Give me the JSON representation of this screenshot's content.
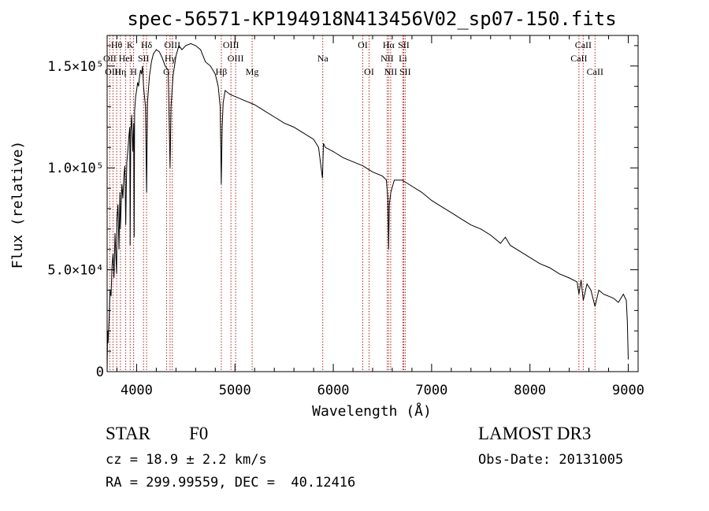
{
  "chart_data": {
    "type": "line",
    "title": "spec-56571-KP194918N413456V02_sp07-150.fits",
    "xlabel": "Wavelength (Å)",
    "ylabel": "Flux (relative)",
    "xlim": [
      3700,
      9100
    ],
    "ylim": [
      0,
      165000
    ],
    "x_ticks": [
      {
        "value": 4000,
        "label": "4000"
      },
      {
        "value": 5000,
        "label": "5000"
      },
      {
        "value": 6000,
        "label": "6000"
      },
      {
        "value": 7000,
        "label": "7000"
      },
      {
        "value": 8000,
        "label": "8000"
      },
      {
        "value": 9000,
        "label": "9000"
      }
    ],
    "y_ticks": [
      {
        "value": 0,
        "label": "0"
      },
      {
        "value": 50000,
        "label": "5.0×10⁴"
      },
      {
        "value": 100000,
        "label": "1.0×10⁵"
      },
      {
        "value": 150000,
        "label": "1.5×10⁵"
      }
    ],
    "series": [
      {
        "name": "flux",
        "x": [
          3700,
          3705,
          3710,
          3720,
          3730,
          3740,
          3750,
          3760,
          3770,
          3780,
          3790,
          3797,
          3800,
          3810,
          3820,
          3830,
          3835,
          3840,
          3850,
          3860,
          3870,
          3880,
          3889,
          3895,
          3900,
          3910,
          3920,
          3930,
          3934,
          3940,
          3950,
          3960,
          3970,
          3975,
          3980,
          3990,
          4000,
          4010,
          4020,
          4030,
          4040,
          4050,
          4060,
          4070,
          4090,
          4101,
          4110,
          4130,
          4150,
          4170,
          4200,
          4230,
          4260,
          4290,
          4320,
          4340,
          4350,
          4370,
          4400,
          4430,
          4460,
          4500,
          4550,
          4600,
          4650,
          4700,
          4750,
          4800,
          4830,
          4850,
          4861,
          4870,
          4880,
          4900,
          4950,
          5000,
          5100,
          5200,
          5300,
          5400,
          5500,
          5600,
          5700,
          5800,
          5850,
          5890,
          5900,
          5920,
          6000,
          6100,
          6200,
          6300,
          6400,
          6500,
          6540,
          6555,
          6563,
          6570,
          6585,
          6620,
          6700,
          6800,
          6900,
          7000,
          7100,
          7200,
          7300,
          7400,
          7500,
          7600,
          7700,
          7750,
          7800,
          7900,
          8000,
          8100,
          8200,
          8300,
          8400,
          8480,
          8498,
          8520,
          8542,
          8580,
          8620,
          8662,
          8700,
          8750,
          8800,
          8850,
          8900,
          8950,
          8980,
          8990,
          9000
        ],
        "y": [
          0,
          20000,
          14000,
          26000,
          40000,
          37000,
          52000,
          58000,
          46000,
          68000,
          56000,
          48000,
          75000,
          82000,
          60000,
          88000,
          70000,
          78000,
          92000,
          85000,
          96000,
          101000,
          72000,
          90000,
          103000,
          108000,
          115000,
          120000,
          62000,
          118000,
          126000,
          108000,
          122000,
          66000,
          128000,
          135000,
          138000,
          142000,
          140000,
          145000,
          148000,
          146000,
          150000,
          140000,
          130000,
          88000,
          132000,
          145000,
          152000,
          156000,
          158000,
          157000,
          154000,
          150000,
          148000,
          100000,
          130000,
          145000,
          155000,
          160000,
          158000,
          160000,
          161000,
          160000,
          158000,
          152000,
          150000,
          146000,
          140000,
          130000,
          92000,
          120000,
          132000,
          138000,
          136000,
          135000,
          133000,
          131000,
          128000,
          125000,
          122000,
          120000,
          117000,
          114000,
          110000,
          95000,
          112000,
          110000,
          108000,
          105000,
          103000,
          101000,
          98000,
          96000,
          94000,
          85000,
          60000,
          82000,
          88000,
          94000,
          94000,
          91000,
          88000,
          84000,
          81000,
          78000,
          75000,
          72000,
          70000,
          67000,
          63000,
          66000,
          62000,
          59000,
          56000,
          53000,
          51000,
          48000,
          46000,
          44000,
          38000,
          45000,
          35000,
          43000,
          40000,
          32000,
          40000,
          38000,
          37000,
          36000,
          34000,
          38000,
          35000,
          25000,
          6000
        ]
      }
    ],
    "line_markers": [
      {
        "label": "Hθ",
        "x": 3797,
        "row": 1
      },
      {
        "label": "OII",
        "x": 3727,
        "row": 2
      },
      {
        "label": "OIII",
        "x": 3760,
        "row": 3
      },
      {
        "label": "K",
        "x": 3934,
        "row": 1
      },
      {
        "label": "HeI",
        "x": 3889,
        "row": 2
      },
      {
        "label": "Hη",
        "x": 3835,
        "row": 3
      },
      {
        "label": "H",
        "x": 3969,
        "row": 3
      },
      {
        "label": "Hδ",
        "x": 4101,
        "row": 1
      },
      {
        "label": "SII",
        "x": 4070,
        "row": 2
      },
      {
        "label": "OIII",
        "x": 4363,
        "row": 1
      },
      {
        "label": "Hγ",
        "x": 4340,
        "row": 2
      },
      {
        "label": "G",
        "x": 4304,
        "row": 3
      },
      {
        "label": "OIII",
        "x": 4959,
        "row": 1
      },
      {
        "label": "OIII",
        "x": 5007,
        "row": 2
      },
      {
        "label": "Hβ",
        "x": 4861,
        "row": 3
      },
      {
        "label": "Mg",
        "x": 5175,
        "row": 3
      },
      {
        "label": "Na",
        "x": 5893,
        "row": 2
      },
      {
        "label": "OI",
        "x": 6300,
        "row": 1
      },
      {
        "label": "OI",
        "x": 6364,
        "row": 3
      },
      {
        "label": "Hα",
        "x": 6563,
        "row": 1
      },
      {
        "label": "SII",
        "x": 6716,
        "row": 1
      },
      {
        "label": "NII",
        "x": 6548,
        "row": 2
      },
      {
        "label": "Li",
        "x": 6708,
        "row": 2
      },
      {
        "label": "NII",
        "x": 6584,
        "row": 3
      },
      {
        "label": "SII",
        "x": 6731,
        "row": 3
      },
      {
        "label": "CaII",
        "x": 8542,
        "row": 1
      },
      {
        "label": "CaII",
        "x": 8498,
        "row": 2
      },
      {
        "label": "CaII",
        "x": 8662,
        "row": 3
      }
    ],
    "marker_color": "#b22222"
  },
  "info": {
    "class_label": "STAR",
    "subclass": "F0",
    "survey": "LAMOST DR3",
    "cz": "cz = 18.9 ± 2.2 km/s",
    "obs_date": "Obs-Date: 20131005",
    "coords": "RA = 299.99559, DEC =  40.12416"
  }
}
